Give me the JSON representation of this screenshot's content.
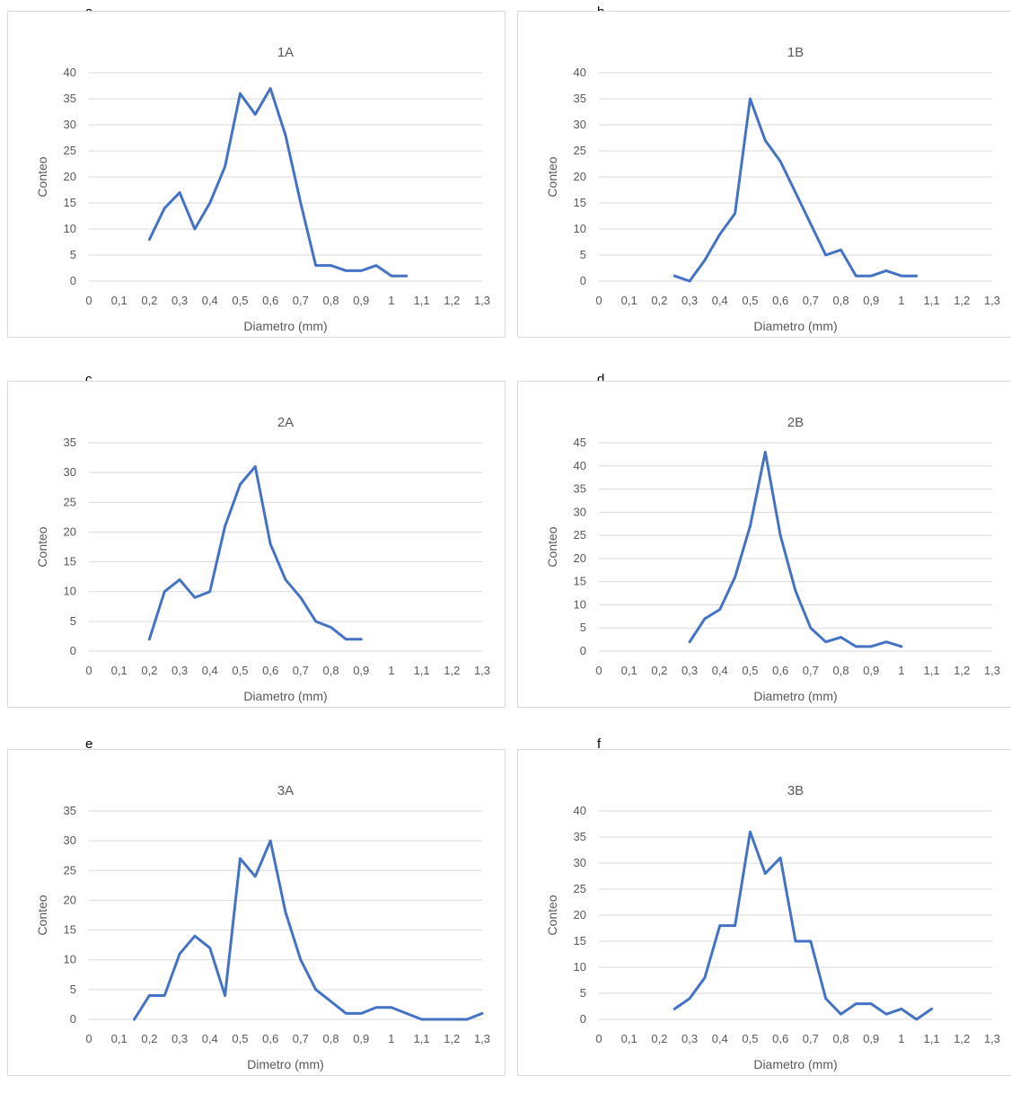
{
  "panels": [
    {
      "letter": "a"
    },
    {
      "letter": "b"
    },
    {
      "letter": "c"
    },
    {
      "letter": "d"
    },
    {
      "letter": "e"
    },
    {
      "letter": "f"
    }
  ],
  "chart_data": [
    {
      "type": "line",
      "title": "1A",
      "xlabel": "Diametro (mm)",
      "ylabel": "Conteo",
      "xlim": [
        0,
        1.3
      ],
      "ylim": [
        0,
        40
      ],
      "ystep": 5,
      "grid": true,
      "xticks": [
        "0",
        "0,1",
        "0,2",
        "0,3",
        "0,4",
        "0,5",
        "0,6",
        "0,7",
        "0,8",
        "0,9",
        "1",
        "1,1",
        "1,2",
        "1,3"
      ],
      "series": [
        {
          "color": "#4472c4",
          "x": [
            0.2,
            0.25,
            0.3,
            0.35,
            0.4,
            0.45,
            0.5,
            0.55,
            0.6,
            0.65,
            0.7,
            0.75,
            0.8,
            0.85,
            0.9,
            0.95,
            1.0,
            1.05
          ],
          "y": [
            8,
            14,
            17,
            10,
            15,
            22,
            36,
            32,
            37,
            28,
            15,
            3,
            3,
            2,
            2,
            3,
            1,
            1
          ]
        }
      ]
    },
    {
      "type": "line",
      "title": "1B",
      "xlabel": "Diametro (mm)",
      "ylabel": "Conteo",
      "xlim": [
        0,
        1.3
      ],
      "ylim": [
        0,
        40
      ],
      "ystep": 5,
      "grid": true,
      "xticks": [
        "0",
        "0,1",
        "0,2",
        "0,3",
        "0,4",
        "0,5",
        "0,6",
        "0,7",
        "0,8",
        "0,9",
        "1",
        "1,1",
        "1,2",
        "1,3"
      ],
      "series": [
        {
          "color": "#4472c4",
          "x": [
            0.25,
            0.3,
            0.35,
            0.4,
            0.45,
            0.5,
            0.55,
            0.6,
            0.65,
            0.7,
            0.75,
            0.8,
            0.85,
            0.9,
            0.95,
            1.0,
            1.05
          ],
          "y": [
            1,
            0,
            4,
            9,
            13,
            35,
            27,
            23,
            17,
            11,
            5,
            6,
            1,
            1,
            2,
            1,
            1
          ]
        }
      ]
    },
    {
      "type": "line",
      "title": "2A",
      "xlabel": "Diametro (mm)",
      "ylabel": "Conteo",
      "xlim": [
        0,
        1.3
      ],
      "ylim": [
        0,
        35
      ],
      "ystep": 5,
      "grid": true,
      "xticks": [
        "0",
        "0,1",
        "0,2",
        "0,3",
        "0,4",
        "0,5",
        "0,6",
        "0,7",
        "0,8",
        "0,9",
        "1",
        "1,1",
        "1,2",
        "1,3"
      ],
      "series": [
        {
          "color": "#4472c4",
          "x": [
            0.2,
            0.25,
            0.3,
            0.35,
            0.4,
            0.45,
            0.5,
            0.55,
            0.6,
            0.65,
            0.7,
            0.75,
            0.8,
            0.85,
            0.9
          ],
          "y": [
            2,
            10,
            12,
            9,
            10,
            21,
            28,
            31,
            18,
            12,
            9,
            5,
            4,
            2,
            2
          ]
        }
      ]
    },
    {
      "type": "line",
      "title": "2B",
      "xlabel": "Diametro (mm)",
      "ylabel": "Conteo",
      "xlim": [
        0,
        1.3
      ],
      "ylim": [
        0,
        45
      ],
      "ystep": 5,
      "grid": true,
      "xticks": [
        "0",
        "0,1",
        "0,2",
        "0,3",
        "0,4",
        "0,5",
        "0,6",
        "0,7",
        "0,8",
        "0,9",
        "1",
        "1,1",
        "1,2",
        "1,3"
      ],
      "series": [
        {
          "color": "#4472c4",
          "x": [
            0.3,
            0.35,
            0.4,
            0.45,
            0.5,
            0.55,
            0.6,
            0.65,
            0.7,
            0.75,
            0.8,
            0.85,
            0.9,
            0.95,
            1.0
          ],
          "y": [
            2,
            7,
            9,
            16,
            27,
            43,
            25,
            13,
            5,
            2,
            3,
            1,
            1,
            2,
            1
          ]
        }
      ]
    },
    {
      "type": "line",
      "title": "3A",
      "xlabel": "Dimetro (mm)",
      "ylabel": "Conteo",
      "xlim": [
        0,
        1.3
      ],
      "ylim": [
        0,
        35
      ],
      "ystep": 5,
      "grid": true,
      "xticks": [
        "0",
        "0,1",
        "0,2",
        "0,3",
        "0,4",
        "0,5",
        "0,6",
        "0,7",
        "0,8",
        "0,9",
        "1",
        "1,1",
        "1,2",
        "1,3"
      ],
      "series": [
        {
          "color": "#4472c4",
          "x": [
            0.15,
            0.2,
            0.25,
            0.3,
            0.35,
            0.4,
            0.45,
            0.5,
            0.55,
            0.6,
            0.65,
            0.7,
            0.75,
            0.8,
            0.85,
            0.9,
            0.95,
            1.0,
            1.05,
            1.1,
            1.15,
            1.2,
            1.25,
            1.3
          ],
          "y": [
            0,
            4,
            4,
            11,
            14,
            12,
            4,
            27,
            24,
            30,
            18,
            10,
            5,
            3,
            1,
            1,
            2,
            2,
            1,
            0,
            0,
            0,
            0,
            1
          ]
        }
      ]
    },
    {
      "type": "line",
      "title": "3B",
      "xlabel": "Diametro (mm)",
      "ylabel": "Conteo",
      "xlim": [
        0,
        1.3
      ],
      "ylim": [
        0,
        40
      ],
      "ystep": 5,
      "grid": true,
      "xticks": [
        "0",
        "0,1",
        "0,2",
        "0,3",
        "0,4",
        "0,5",
        "0,6",
        "0,7",
        "0,8",
        "0,9",
        "1",
        "1,1",
        "1,2",
        "1,3"
      ],
      "series": [
        {
          "color": "#4472c4",
          "x": [
            0.25,
            0.3,
            0.35,
            0.4,
            0.45,
            0.5,
            0.55,
            0.6,
            0.65,
            0.7,
            0.75,
            0.8,
            0.85,
            0.9,
            0.95,
            1.0,
            1.05,
            1.1
          ],
          "y": [
            2,
            4,
            8,
            18,
            18,
            36,
            28,
            31,
            15,
            15,
            4,
            1,
            3,
            3,
            1,
            2,
            0,
            2
          ]
        }
      ]
    }
  ]
}
